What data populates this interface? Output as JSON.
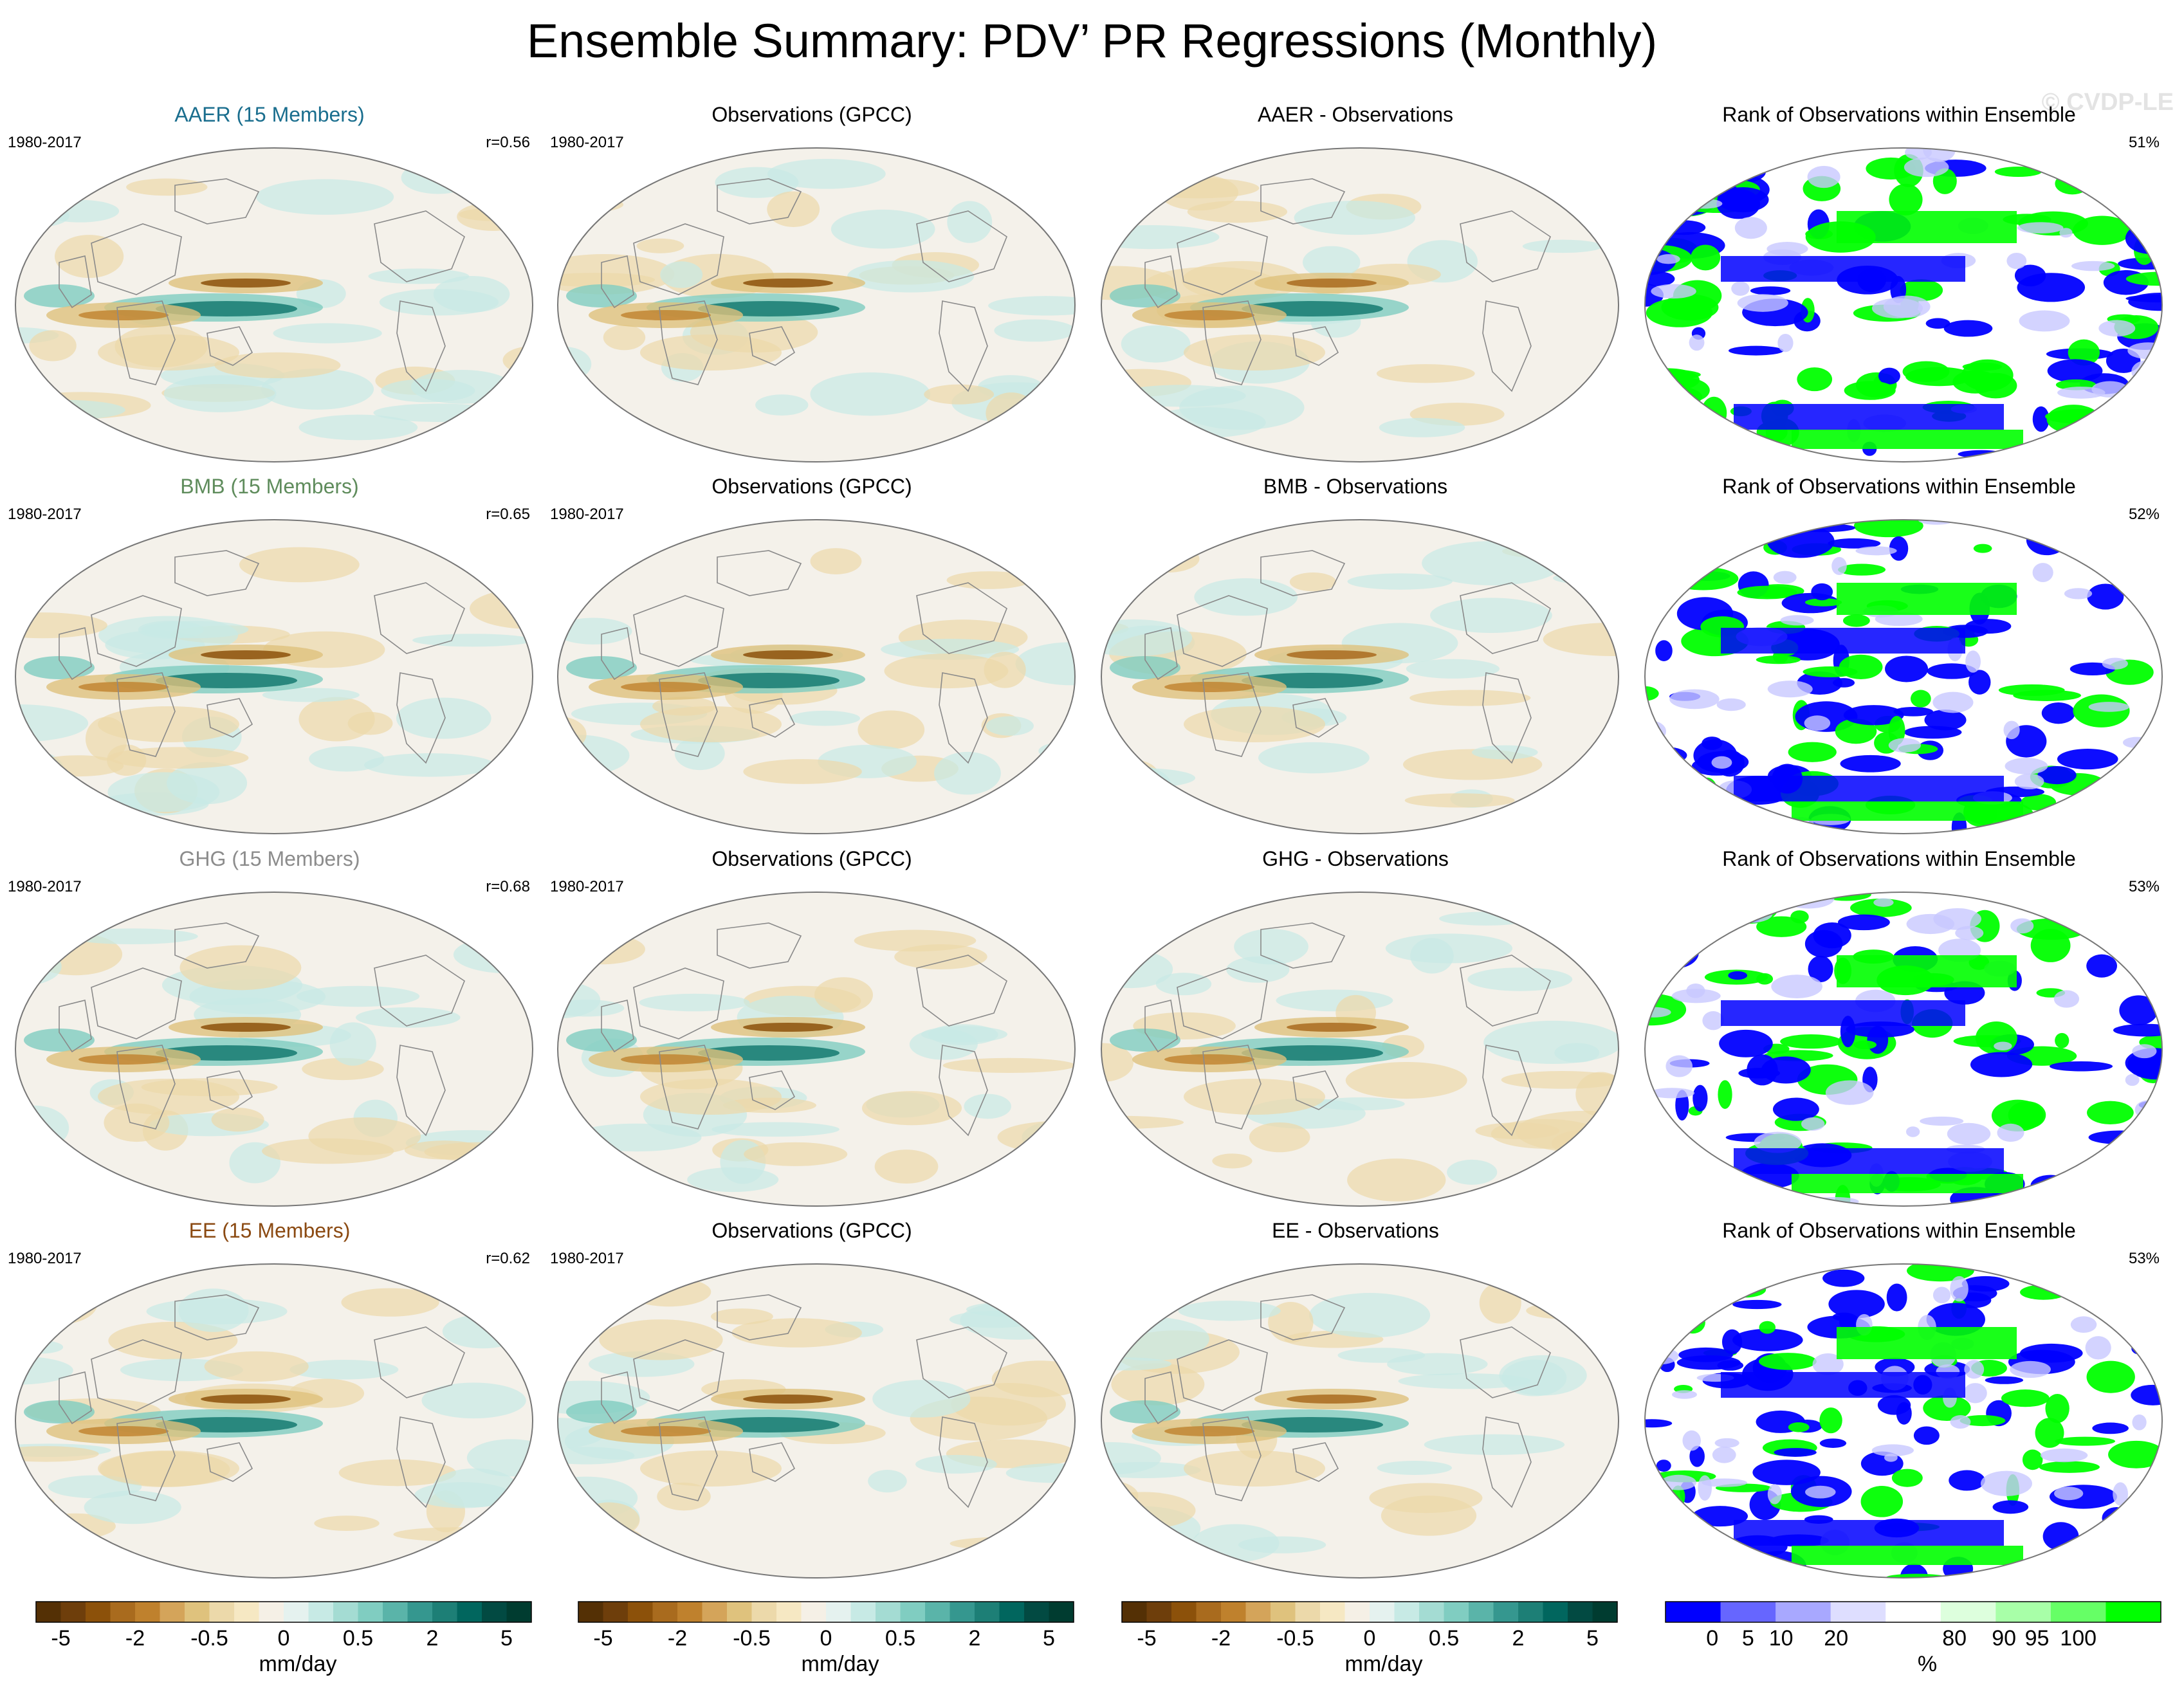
{
  "title": "Ensemble Summary: PDV’ PR Regressions (Monthly)",
  "watermark": "© CVDP-LE",
  "colors": {
    "aaer": "#1a6e8e",
    "bmb": "#5f8c5c",
    "ghg": "#8c8c8c",
    "ee": "#8b4a12",
    "land_line": "#8a8a8a"
  },
  "rows": [
    {
      "key": "aaer",
      "panels": [
        {
          "title": "AAER (15 Members)",
          "left": "1980-2017",
          "right": "r=0.56",
          "kind": "model"
        },
        {
          "title": "Observations (GPCC)",
          "left": "1980-2017",
          "right": "",
          "kind": "obs"
        },
        {
          "title": "AAER - Observations",
          "left": "",
          "right": "",
          "kind": "diff"
        },
        {
          "title": "Rank of Observations within Ensemble",
          "left": "",
          "right": "51%",
          "kind": "rank"
        }
      ]
    },
    {
      "key": "bmb",
      "panels": [
        {
          "title": "BMB (15 Members)",
          "left": "1980-2017",
          "right": "r=0.65",
          "kind": "model"
        },
        {
          "title": "Observations (GPCC)",
          "left": "1980-2017",
          "right": "",
          "kind": "obs"
        },
        {
          "title": "BMB - Observations",
          "left": "",
          "right": "",
          "kind": "diff"
        },
        {
          "title": "Rank of Observations within Ensemble",
          "left": "",
          "right": "52%",
          "kind": "rank"
        }
      ]
    },
    {
      "key": "ghg",
      "panels": [
        {
          "title": "GHG (15 Members)",
          "left": "1980-2017",
          "right": "r=0.68",
          "kind": "model"
        },
        {
          "title": "Observations (GPCC)",
          "left": "1980-2017",
          "right": "",
          "kind": "obs"
        },
        {
          "title": "GHG - Observations",
          "left": "",
          "right": "",
          "kind": "diff"
        },
        {
          "title": "Rank of Observations within Ensemble",
          "left": "",
          "right": "53%",
          "kind": "rank"
        }
      ]
    },
    {
      "key": "ee",
      "panels": [
        {
          "title": "EE (15 Members)",
          "left": "1980-2017",
          "right": "r=0.62",
          "kind": "model"
        },
        {
          "title": "Observations (GPCC)",
          "left": "1980-2017",
          "right": "",
          "kind": "obs"
        },
        {
          "title": "EE - Observations",
          "left": "",
          "right": "",
          "kind": "diff"
        },
        {
          "title": "Rank of Observations within Ensemble",
          "left": "",
          "right": "53%",
          "kind": "rank"
        }
      ]
    }
  ],
  "colorbars": {
    "pr": {
      "unit": "mm/day",
      "labels": [
        "-5",
        "-2",
        "-0.5",
        "0",
        "0.5",
        "2",
        "5"
      ],
      "colors": [
        "#543005",
        "#6e3e0b",
        "#8c510a",
        "#a96b1e",
        "#bf812d",
        "#d4a45a",
        "#dfc27d",
        "#ecd9aa",
        "#f6e8c3",
        "#f5f0e6",
        "#e5f2ef",
        "#c7eae5",
        "#a4dcd3",
        "#80cdc1",
        "#5ab4a9",
        "#35978f",
        "#1d7f76",
        "#01665e",
        "#024a42",
        "#003c30"
      ],
      "label_positions": [
        1,
        4,
        7,
        10,
        13,
        16,
        19
      ]
    },
    "rank": {
      "unit": "%",
      "labels": [
        "0",
        "5",
        "10",
        "20",
        "80",
        "90",
        "95",
        "100"
      ],
      "colors": [
        "#0000ff",
        "#6666ff",
        "#a8a8ff",
        "#dedeff",
        "#ffffff",
        "#ddffdd",
        "#a8ffa8",
        "#66ff66",
        "#00ff00"
      ],
      "label_positions": [
        0.85,
        1.5,
        2.1,
        3.1,
        5.25,
        6.15,
        6.75,
        7.5
      ]
    }
  }
}
